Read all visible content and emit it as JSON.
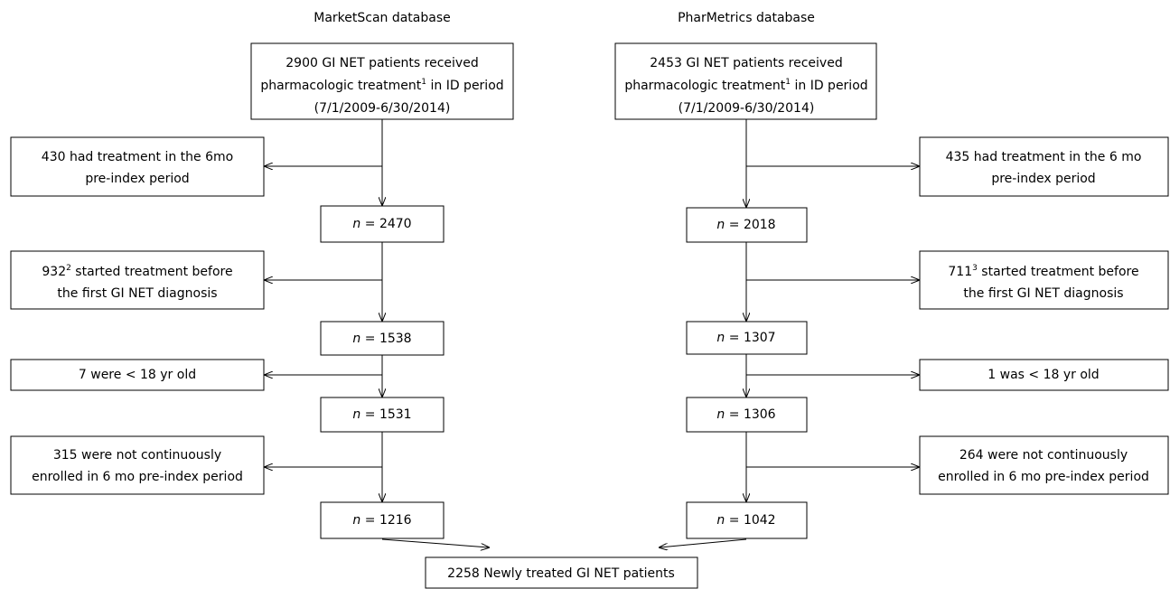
{
  "columns": [
    {
      "title": "MarketScan database",
      "source": {
        "lines": [
          [
            {
              "text": "2900 GI NET patients received"
            }
          ],
          [
            {
              "text": "pharmacologic treatment"
            },
            {
              "sup": "1"
            },
            {
              "text": " in ID period"
            }
          ],
          [
            {
              "text": "(7/1/2009-6/30/2014)"
            }
          ]
        ]
      },
      "exclusions": [
        {
          "lines": [
            [
              {
                "text": "430 had treatment in the 6mo"
              }
            ],
            [
              {
                "text": "pre-index period"
              }
            ]
          ]
        },
        {
          "lines": [
            [
              {
                "text": "932"
              },
              {
                "sup": "2"
              },
              {
                "text": " started treatment before"
              }
            ],
            [
              {
                "text": "the first GI NET diagnosis"
              }
            ]
          ]
        },
        {
          "lines": [
            [
              {
                "text": "7 were < 18 yr old"
              }
            ]
          ]
        },
        {
          "lines": [
            [
              {
                "text": "315 were not continuously"
              }
            ],
            [
              {
                "text": "enrolled in 6 mo pre-index period"
              }
            ]
          ]
        }
      ],
      "counts": [
        {
          "symbol": "n",
          "relation": " = ",
          "value": 2470
        },
        {
          "symbol": "n",
          "relation": " = ",
          "value": 1538
        },
        {
          "symbol": "n",
          "relation": " = ",
          "value": 1531
        },
        {
          "symbol": "n",
          "relation": " = ",
          "value": 1216
        }
      ]
    },
    {
      "title": "PharMetrics database",
      "source": {
        "lines": [
          [
            {
              "text": "2453 GI NET patients received"
            }
          ],
          [
            {
              "text": "pharmacologic treatment"
            },
            {
              "sup": "1"
            },
            {
              "text": " in ID period"
            }
          ],
          [
            {
              "text": "(7/1/2009-6/30/2014)"
            }
          ]
        ]
      },
      "exclusions": [
        {
          "lines": [
            [
              {
                "text": "435 had treatment in the 6 mo"
              }
            ],
            [
              {
                "text": "pre-index period"
              }
            ]
          ]
        },
        {
          "lines": [
            [
              {
                "text": "711"
              },
              {
                "sup": "3"
              },
              {
                "text": " started treatment before"
              }
            ],
            [
              {
                "text": "the first GI NET diagnosis"
              }
            ]
          ]
        },
        {
          "lines": [
            [
              {
                "text": "1 was < 18 yr old"
              }
            ]
          ]
        },
        {
          "lines": [
            [
              {
                "text": "264 were not continuously"
              }
            ],
            [
              {
                "text": "enrolled in 6 mo pre-index period"
              }
            ]
          ]
        }
      ],
      "counts": [
        {
          "symbol": "n",
          "relation": " = ",
          "value": 2018
        },
        {
          "symbol": "n",
          "relation": " = ",
          "value": 1307
        },
        {
          "symbol": "n",
          "relation": " = ",
          "value": 1306
        },
        {
          "symbol": "n",
          "relation": " = ",
          "value": 1042
        }
      ]
    }
  ],
  "result": {
    "text": "2258 Newly treated GI NET patients"
  }
}
